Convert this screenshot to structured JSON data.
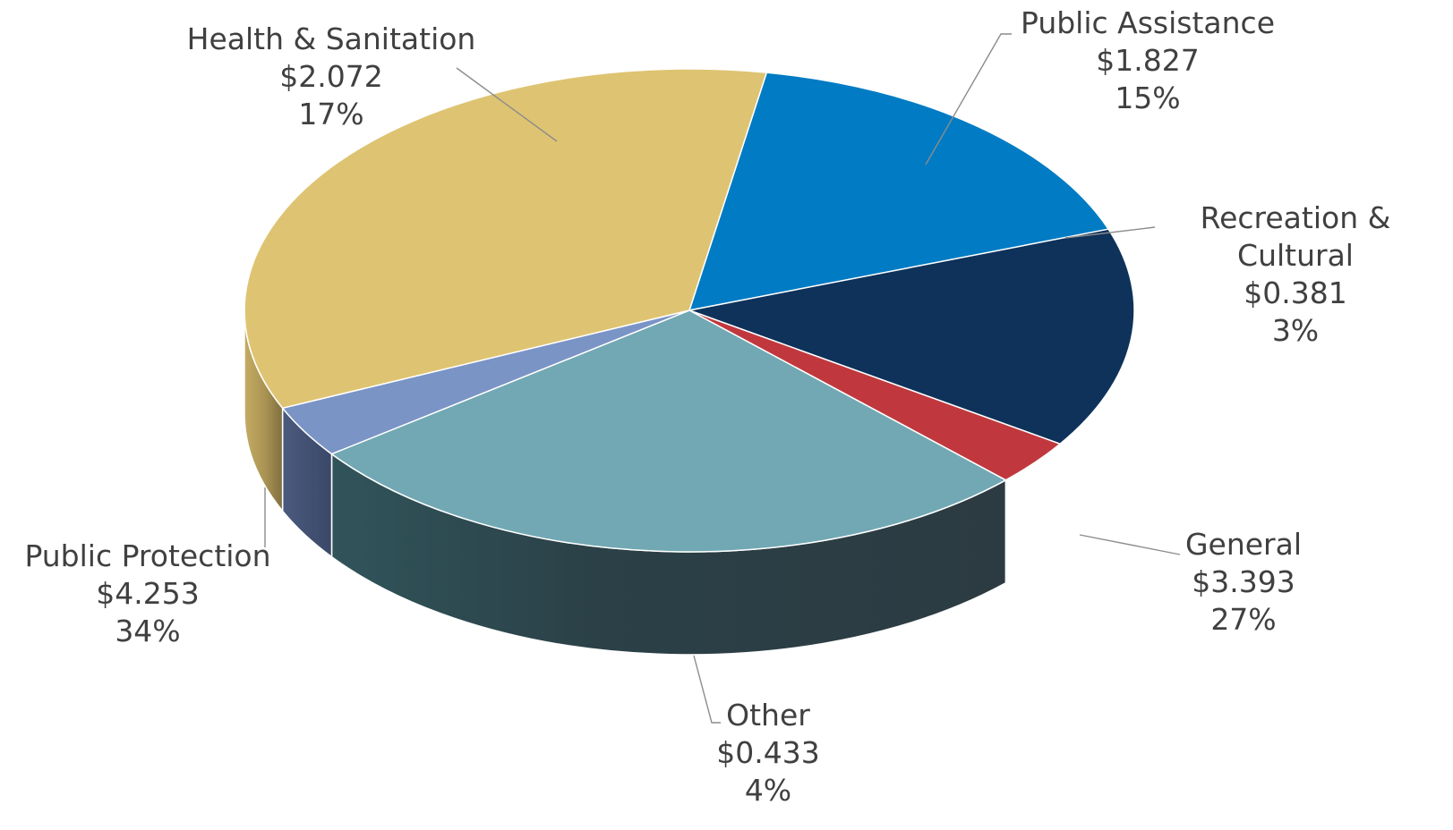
{
  "chart_data": {
    "type": "pie",
    "variant": "3d",
    "legend": "none",
    "slices": [
      {
        "name": "Health & Sanitation",
        "value": 2.072,
        "value_label": "$2.072",
        "percent_label": "17%",
        "color": "#007BC4"
      },
      {
        "name": "Public Assistance",
        "value": 1.827,
        "value_label": "$1.827",
        "percent_label": "15%",
        "color": "#0E325A"
      },
      {
        "name": "Recreation & Cultural",
        "value": 0.381,
        "value_label": "$0.381",
        "percent_label": "3%",
        "color": "#C0383D"
      },
      {
        "name": "General",
        "value": 3.393,
        "value_label": "$3.393",
        "percent_label": "27%",
        "color": "#71A8B3"
      },
      {
        "name": "Other",
        "value": 0.433,
        "value_label": "$0.433",
        "percent_label": "4%",
        "color": "#7B94C6"
      },
      {
        "name": "Public Protection",
        "value": 4.253,
        "value_label": "$4.253",
        "percent_label": "34%",
        "color": "#DEC472"
      }
    ]
  }
}
